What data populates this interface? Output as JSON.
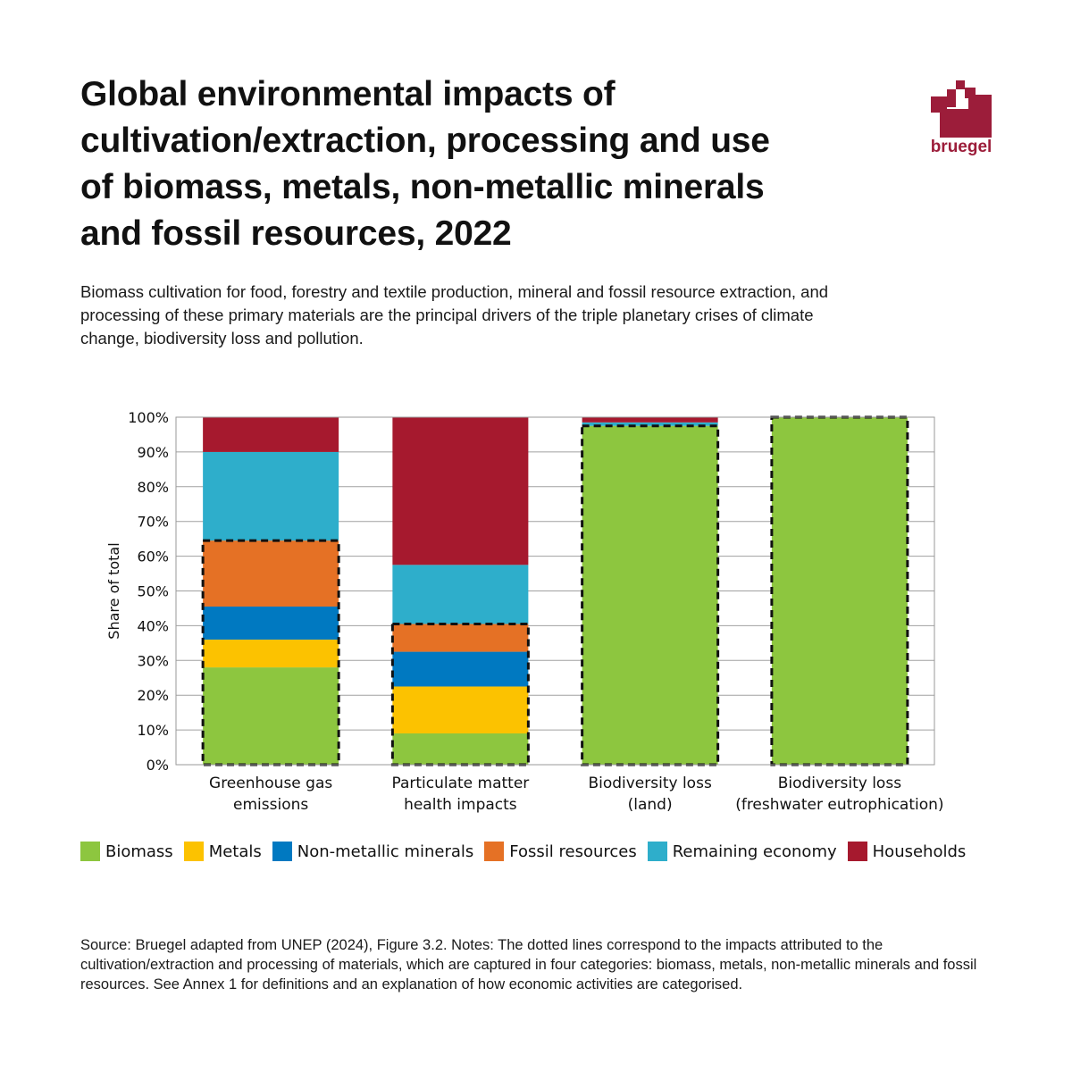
{
  "title_lines": [
    "Global environmental impacts of",
    "cultivation/extraction, processing and use",
    "of biomass, metals, non-metallic minerals",
    "and fossil resources, 2022"
  ],
  "subtitle": "Biomass cultivation for food, forestry and textile production, mineral and fossil resource extraction, and processing of these primary materials are the principal drivers of the triple planetary crises of climate change, biodiversity loss and pollution.",
  "logo_text": "bruegel",
  "source_note": "Source: Bruegel adapted from UNEP (2024), Figure 3.2. Notes: The dotted lines correspond to the impacts attributed to the cultivation/extraction and processing of materials, which are captured in four categories: biomass, metals, non-metallic minerals and fossil resources. See Annex 1 for definitions and an explanation of how economic activities are categorised.",
  "colors": {
    "biomass": "#8dc63f",
    "metals": "#fcc200",
    "non_metallic": "#0079c1",
    "fossil": "#e57125",
    "remaining": "#2eaecb",
    "households": "#a6192e",
    "brand": "#9c1d3a"
  },
  "chart_data": {
    "type": "bar",
    "stacked": true,
    "title": "Global environmental impacts of cultivation/extraction, processing and use of biomass, metals, non-metallic minerals and fossil resources, 2022",
    "ylabel": "Share of total",
    "ylim": [
      0,
      100
    ],
    "yticks": [
      "0%",
      "10%",
      "20%",
      "30%",
      "40%",
      "50%",
      "60%",
      "70%",
      "80%",
      "90%",
      "100%"
    ],
    "grid": true,
    "legend_position": "bottom",
    "categories": [
      [
        "Greenhouse gas",
        "emissions"
      ],
      [
        "Particulate matter",
        "health impacts"
      ],
      [
        "Biodiversity loss",
        "(land)"
      ],
      [
        "Biodiversity loss",
        "(freshwater eutrophication)"
      ]
    ],
    "series": [
      {
        "name": "Biomass",
        "color": "#8dc63f",
        "values": [
          28,
          9,
          97.5,
          100
        ]
      },
      {
        "name": "Metals",
        "color": "#fcc200",
        "values": [
          8,
          13.5,
          0,
          0
        ]
      },
      {
        "name": "Non-metallic minerals",
        "color": "#0079c1",
        "values": [
          9.5,
          10,
          0,
          0
        ]
      },
      {
        "name": "Fossil resources",
        "color": "#e57125",
        "values": [
          19,
          8,
          0,
          0
        ]
      },
      {
        "name": "Remaining economy",
        "color": "#2eaecb",
        "values": [
          25.5,
          17,
          1,
          0
        ]
      },
      {
        "name": "Households",
        "color": "#a6192e",
        "values": [
          10,
          42.5,
          1.5,
          0
        ]
      }
    ],
    "dotted_outline_top": [
      64.5,
      40.5,
      97.5,
      100
    ]
  }
}
